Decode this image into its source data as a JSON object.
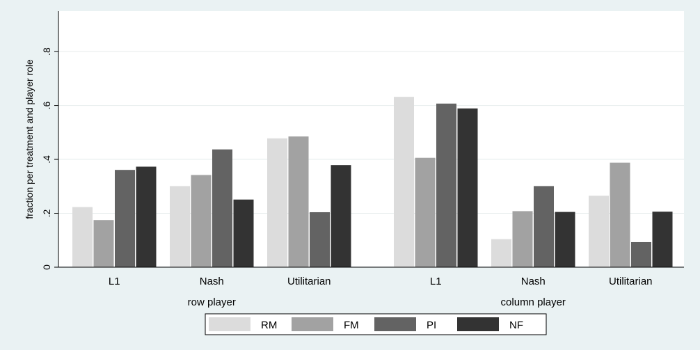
{
  "chart_data": {
    "type": "bar",
    "ylabel": "fraction per treatment and player role",
    "ylim": [
      0,
      0.95
    ],
    "yticks": [
      {
        "value": 0,
        "label": "0"
      },
      {
        "value": 0.2,
        "label": ".2"
      },
      {
        "value": 0.4,
        "label": ".4"
      },
      {
        "value": 0.6,
        "label": ".6"
      },
      {
        "value": 0.8,
        "label": ".8"
      }
    ],
    "grid": true,
    "legend": "bottom",
    "groups": [
      {
        "label": "row player",
        "categories": [
          {
            "label": "L1",
            "values": [
              0.223,
              0.175,
              0.361,
              0.373
            ]
          },
          {
            "label": "Nash",
            "values": [
              0.301,
              0.342,
              0.437,
              0.251
            ]
          },
          {
            "label": "Utilitarian",
            "values": [
              0.478,
              0.485,
              0.204,
              0.379
            ]
          }
        ]
      },
      {
        "label": "column player",
        "categories": [
          {
            "label": "L1",
            "values": [
              0.632,
              0.406,
              0.607,
              0.589
            ]
          },
          {
            "label": "Nash",
            "values": [
              0.104,
              0.208,
              0.301,
              0.205
            ]
          },
          {
            "label": "Utilitarian",
            "values": [
              0.265,
              0.388,
              0.093,
              0.206
            ]
          }
        ]
      }
    ],
    "series": [
      {
        "name": "RM",
        "color": "#dcdcdc"
      },
      {
        "name": "FM",
        "color": "#a2a2a2"
      },
      {
        "name": "PI",
        "color": "#636363"
      },
      {
        "name": "NF",
        "color": "#333333"
      }
    ]
  }
}
